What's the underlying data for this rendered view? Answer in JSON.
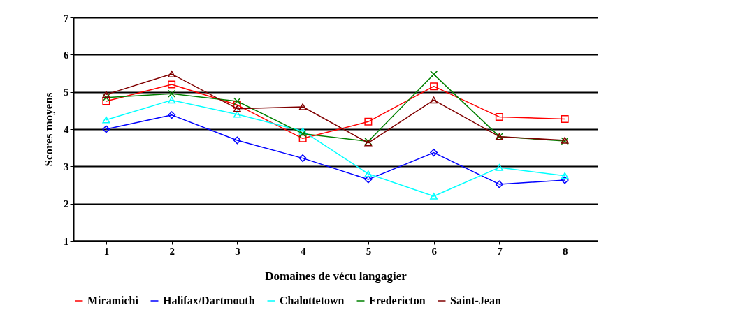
{
  "chart_data": {
    "type": "line",
    "xlabel": "Domaines de vécu langagier",
    "ylabel": "Scores moyens",
    "categories": [
      "1",
      "2",
      "3",
      "4",
      "5",
      "6",
      "7",
      "8"
    ],
    "ylim": [
      1,
      7
    ],
    "yticks": [
      1,
      2,
      3,
      4,
      5,
      6,
      7
    ],
    "grid": "y",
    "legend": "bottom",
    "series": [
      {
        "name": "Miramichi",
        "color": "#ff0000",
        "marker": "square",
        "values": [
          4.75,
          5.2,
          4.65,
          3.75,
          4.2,
          5.15,
          4.33,
          4.27
        ]
      },
      {
        "name": "Halifax/Dartmouth",
        "color": "#0000ff",
        "marker": "diamond",
        "values": [
          4.0,
          4.38,
          3.7,
          3.22,
          2.65,
          3.37,
          2.52,
          2.63
        ]
      },
      {
        "name": "Chalottetown",
        "color": "#00ffff",
        "marker": "triangle",
        "values": [
          4.25,
          4.78,
          4.4,
          3.95,
          2.8,
          2.2,
          2.97,
          2.75
        ]
      },
      {
        "name": "Fredericton",
        "color": "#008000",
        "marker": "cross",
        "values": [
          4.85,
          4.95,
          4.75,
          3.88,
          3.67,
          5.47,
          3.8,
          3.68
        ]
      },
      {
        "name": "Saint-Jean",
        "color": "#800000",
        "marker": "triangle",
        "values": [
          4.93,
          5.48,
          4.55,
          4.6,
          3.63,
          4.78,
          3.8,
          3.7
        ]
      }
    ]
  }
}
